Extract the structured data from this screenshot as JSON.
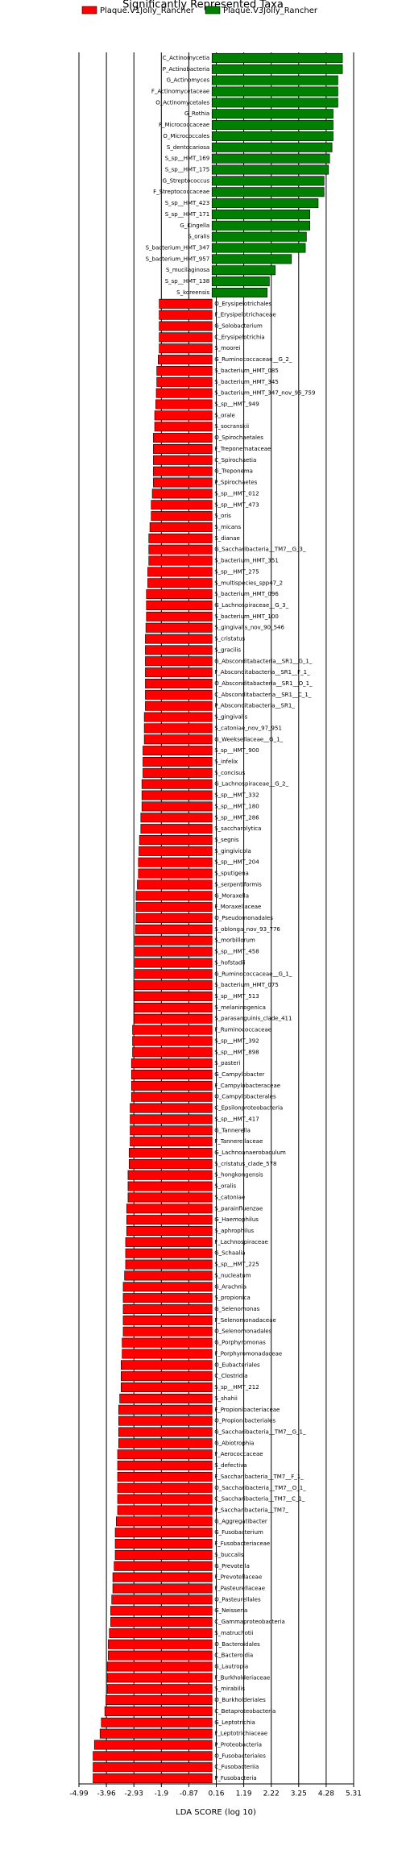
{
  "chart_data": {
    "type": "barh",
    "title": "Significantly Represented Taxa",
    "xlabel": "LDA SCORE (log 10)",
    "xlim": [
      -4.99,
      5.31
    ],
    "xticks": [
      -4.99,
      -3.96,
      -2.93,
      -1.9,
      -0.87,
      0.16,
      1.19,
      2.22,
      3.25,
      4.28,
      5.31
    ],
    "grid": true,
    "series": [
      {
        "name": "Plaque.V1Jolly_Rancher",
        "color": "#ff0000",
        "categories": [
          "O_Erysipelotrichales",
          "F_Erysipelotrichaceae",
          "G_Solobacterium",
          "C_Erysipelotrichia",
          "S_moorei",
          "G_Ruminococcaceae__G_2_",
          "S_bacterium_HMT_085",
          "S_bacterium_HMT_345",
          "S_bacterium_HMT_347_nov_95_759",
          "S_sp__HMT_949",
          "S_orale",
          "S_socranskii",
          "O_Spirochaetales",
          "F_Treponemataceae",
          "C_Spirochaetia",
          "G_Treponema",
          "P_Spirochaetes",
          "S_sp__HMT_012",
          "S_sp__HMT_473",
          "S_oris",
          "S_micans",
          "S_dianae",
          "G_Saccharibacteria__TM7__G_3_",
          "S_bacterium_HMT_351",
          "S_sp__HMT_275",
          "S_multispecies_spp47_2",
          "S_bacterium_HMT_096",
          "G_Lachnospiraceae__G_3_",
          "S_bacterium_HMT_100",
          "S_gingivalis_nov_90_546",
          "S_cristatus",
          "S_gracilis",
          "G_Absconditabacteria__SR1__G_1_",
          "F_Absconditabacteria__SR1__F_1_",
          "O_Absconditabacteria__SR1__O_1_",
          "C_Absconditabacteria__SR1__C_1_",
          "P_Absconditabacteria__SR1_",
          "S_gingivalis",
          "S_catoniae_nov_97_951",
          "G_Weeksellaceae__G_1_",
          "S_sp__HMT_900",
          "S_infelix",
          "S_concisus",
          "G_Lachnospiraceae__G_2_",
          "S_sp__HMT_332",
          "S_sp__HMT_180",
          "S_sp__HMT_286",
          "S_saccharolytica",
          "S_segnis",
          "S_gingivicola",
          "S_sp__HMT_204",
          "S_sputigena",
          "S_serpentiformis",
          "G_Moraxella",
          "F_Moraxellaceae",
          "O_Pseudomonadales",
          "S_oblonga_nov_93_776",
          "S_morbillorum",
          "S_sp__HMT_458",
          "S_hofstadii",
          "G_Ruminococcaceae__G_1_",
          "S_bacterium_HMT_075",
          "S_sp__HMT_513",
          "S_melaninogenica",
          "S_parasanguinis_clade_411",
          "F_Ruminococcaceae",
          "S_sp__HMT_392",
          "S_sp__HMT_898",
          "S_pasteri",
          "G_Campylobacter",
          "F_Campylobacteraceae",
          "O_Campylobacterales",
          "C_Epsilonproteobacteria",
          "S_sp__HMT_417",
          "G_Tannerella",
          "F_Tannerellaceae",
          "G_Lachnoanaerobaculum",
          "S_cristatus_clade_578",
          "S_hongkongensis",
          "S_oralis",
          "S_catoniae",
          "S_parainfluenzae",
          "G_Haemophilus",
          "S_aphrophilus",
          "F_Lachnospiraceae",
          "G_Schaalia",
          "S_sp__HMT_225",
          "S_nucleatum",
          "G_Arachnia",
          "S_propionica",
          "G_Selenomonas",
          "F_Selenomonadaceae",
          "O_Selenomonadales",
          "G_Porphyromonas",
          "F_Porphyromonadaceae",
          "O_Eubacteriales",
          "C_Clostridia",
          "S_sp__HMT_212",
          "S_shahii",
          "F_Propionibacteriaceae",
          "O_Propionibacteriales",
          "G_Saccharibacteria__TM7__G_1_",
          "G_Abiotrophia",
          "F_Aerococcaceae",
          "S_defectiva",
          "F_Saccharibacteria__TM7__F_1_",
          "O_Saccharibacteria__TM7__O_1_",
          "C_Saccharibacteria__TM7__C_1_",
          "P_Saccharibacteria__TM7_",
          "G_Aggregatibacter",
          "G_Fusobacterium",
          "F_Fusobacteriaceae",
          "S_buccalis",
          "G_Prevotella",
          "F_Prevotellaceae",
          "F_Pasteurellaceae",
          "O_Pasteurellales",
          "G_Neisseria",
          "C_Gammaproteobacteria",
          "S_matruchotii",
          "O_Bacteroidales",
          "C_Bacteroidia",
          "G_Lautropia",
          "F_Burkholderiaceae",
          "S_mirabilis",
          "O_Burkholderiales",
          "C_Betaproteobacteria",
          "G_Leptotrichia",
          "F_Leptotrichiaceae",
          "P_Proteobacteria",
          "O_Fusobacteriales",
          "C_Fusobacteriia",
          "P_Fusobacteria"
        ],
        "values": [
          -1.98,
          -1.98,
          -1.98,
          -1.98,
          -1.98,
          -2.02,
          -2.07,
          -2.07,
          -2.09,
          -2.11,
          -2.15,
          -2.15,
          -2.2,
          -2.2,
          -2.2,
          -2.2,
          -2.2,
          -2.24,
          -2.28,
          -2.28,
          -2.33,
          -2.37,
          -2.37,
          -2.37,
          -2.41,
          -2.41,
          -2.46,
          -2.46,
          -2.46,
          -2.48,
          -2.5,
          -2.5,
          -2.5,
          -2.5,
          -2.5,
          -2.5,
          -2.5,
          -2.54,
          -2.54,
          -2.54,
          -2.59,
          -2.59,
          -2.59,
          -2.63,
          -2.63,
          -2.63,
          -2.67,
          -2.67,
          -2.72,
          -2.74,
          -2.76,
          -2.76,
          -2.8,
          -2.85,
          -2.85,
          -2.85,
          -2.87,
          -2.89,
          -2.89,
          -2.89,
          -2.89,
          -2.93,
          -2.93,
          -2.93,
          -2.93,
          -2.98,
          -2.98,
          -2.98,
          -3.02,
          -3.02,
          -3.02,
          -3.02,
          -3.07,
          -3.07,
          -3.07,
          -3.07,
          -3.11,
          -3.11,
          -3.15,
          -3.15,
          -3.15,
          -3.2,
          -3.2,
          -3.2,
          -3.24,
          -3.24,
          -3.24,
          -3.28,
          -3.33,
          -3.33,
          -3.33,
          -3.33,
          -3.33,
          -3.37,
          -3.37,
          -3.41,
          -3.41,
          -3.41,
          -3.46,
          -3.5,
          -3.5,
          -3.5,
          -3.5,
          -3.54,
          -3.54,
          -3.54,
          -3.54,
          -3.54,
          -3.54,
          -3.59,
          -3.63,
          -3.63,
          -3.63,
          -3.67,
          -3.72,
          -3.72,
          -3.76,
          -3.8,
          -3.8,
          -3.85,
          -3.89,
          -3.89,
          -3.93,
          -3.93,
          -3.93,
          -3.98,
          -4.02,
          -4.15,
          -4.2,
          -4.41,
          -4.46,
          -4.46,
          -4.46
        ]
      },
      {
        "name": "Plaque.V3Jolly_Rancher",
        "color": "#008000",
        "categories": [
          "C_Actinomycetia",
          "P_Actinobacteria",
          "G_Actinomyces",
          "F_Actinomycetaceae",
          "O_Actinomycetales",
          "G_Rothia",
          "F_Micrococcaceae",
          "O_Micrococcales",
          "S_dentocariosa",
          "S_sp__HMT_169",
          "S_sp__HMT_175",
          "G_Streptococcus",
          "F_Streptococcaceae",
          "S_sp__HMT_423",
          "S_sp__HMT_171",
          "G_Kingella",
          "S_oralis",
          "S_bacterium_HMT_347",
          "S_bacterium_HMT_957",
          "S_mucilaginosa",
          "S_sp__HMT_138",
          "S_koreensis"
        ],
        "values": [
          4.89,
          4.89,
          4.72,
          4.72,
          4.72,
          4.54,
          4.54,
          4.54,
          4.5,
          4.41,
          4.37,
          4.2,
          4.2,
          3.98,
          3.67,
          3.67,
          3.54,
          3.5,
          2.98,
          2.37,
          2.15,
          2.07
        ]
      }
    ]
  }
}
